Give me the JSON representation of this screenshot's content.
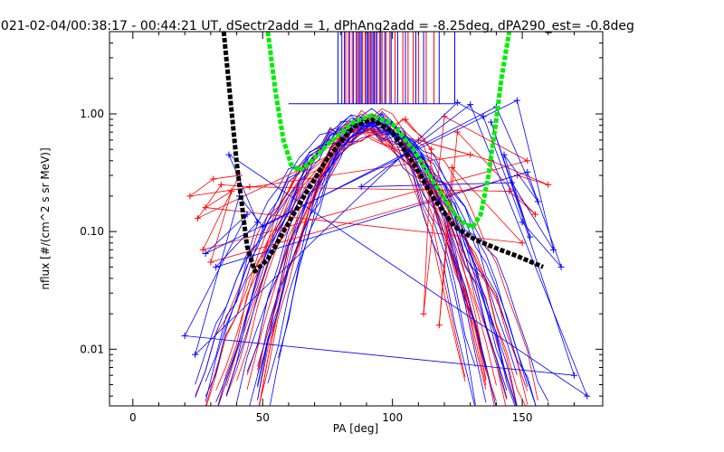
{
  "chart_data": {
    "type": "line",
    "title": "2021-02-04/00:38:17 - 00:44:21 UT, dSectr2add = 1, dPhAng2add = -8.25deg, dPA290_est=  -0.8deg",
    "xlabel": "PA [deg]",
    "ylabel": "nflux [#/(cm^2 s sr MeV)]",
    "xlim": [
      -9,
      181
    ],
    "ylim": [
      0.0033,
      5.0
    ],
    "yscale": "log",
    "x_ticks": [
      0,
      50,
      100,
      150
    ],
    "x_tick_labels": [
      "0",
      "50",
      "100",
      "150"
    ],
    "y_ticks": [
      0.01,
      0.1,
      1.0
    ],
    "y_tick_labels": [
      "0.01",
      "0.10",
      "1.00"
    ],
    "grid": false,
    "colors": {
      "red": "#ff0000",
      "blue": "#0000ff",
      "black": "#000000",
      "green": "#00ee00"
    },
    "series": [
      {
        "color": "#000000",
        "style": "thick-dashed",
        "x": [
          35,
          40,
          44,
          47,
          52,
          58,
          66,
          75,
          85,
          92,
          100,
          108,
          116,
          124,
          132,
          140,
          148,
          158
        ],
        "y": [
          5.0,
          0.38,
          0.075,
          0.046,
          0.058,
          0.1,
          0.2,
          0.42,
          0.78,
          0.9,
          0.7,
          0.38,
          0.19,
          0.11,
          0.085,
          0.072,
          0.062,
          0.05
        ]
      },
      {
        "color": "#00ee00",
        "style": "thick-dashed",
        "x": [
          52,
          55,
          58,
          61,
          64,
          68,
          75,
          85,
          92,
          100,
          108,
          116,
          124,
          128,
          131,
          134,
          137,
          140,
          142,
          145
        ],
        "y": [
          5.0,
          1.5,
          0.6,
          0.37,
          0.33,
          0.38,
          0.55,
          0.85,
          0.97,
          0.82,
          0.5,
          0.26,
          0.14,
          0.115,
          0.11,
          0.14,
          0.3,
          0.9,
          2.0,
          5.0
        ]
      }
    ],
    "sector_lines": {
      "color_red": "#ff0000",
      "color_blue": "#0000ff",
      "y_from": 1.22,
      "y_to": 5.0,
      "red_x": [
        82,
        83,
        84.5,
        86,
        87,
        88.5,
        89.5,
        91,
        92,
        93.5,
        95,
        96,
        97.5,
        99,
        101,
        104,
        106,
        108,
        110,
        113,
        116
      ],
      "blue_x": [
        79,
        80.5,
        81.5,
        83.5,
        85,
        86.5,
        87.5,
        88,
        90,
        90.5,
        91.5,
        92.5,
        93,
        94,
        95.5,
        97,
        99.5,
        102,
        105,
        109,
        112,
        118,
        124
      ]
    },
    "bundle": {
      "center": 91,
      "peak": 0.92,
      "floor": 0.0033,
      "red_curves": 18,
      "blue_curves": 18,
      "red_noise_points": {
        "x": [
          22,
          25,
          28,
          31,
          34,
          38,
          41,
          45,
          30,
          27,
          145,
          148,
          152,
          155,
          160,
          120,
          125,
          138,
          112,
          118,
          110,
          115,
          123,
          130,
          105,
          150
        ],
        "y": [
          0.2,
          0.13,
          0.16,
          0.28,
          0.25,
          0.22,
          0.3,
          0.24,
          0.055,
          0.07,
          0.22,
          0.3,
          0.4,
          0.14,
          0.25,
          0.95,
          0.7,
          0.4,
          0.02,
          0.016,
          0.6,
          0.5,
          0.35,
          0.45,
          0.9,
          0.08
        ]
      },
      "blue_noise_points": {
        "x": [
          37,
          41,
          44,
          48,
          50,
          28,
          32,
          140,
          148,
          152,
          156,
          162,
          165,
          143,
          146,
          150,
          153,
          88,
          135,
          138,
          130,
          125,
          170,
          175,
          24,
          20
        ],
        "y": [
          0.45,
          0.2,
          0.14,
          0.12,
          0.11,
          0.065,
          0.05,
          1.15,
          1.3,
          0.32,
          0.18,
          0.07,
          0.05,
          0.45,
          0.26,
          0.12,
          0.09,
          0.24,
          0.95,
          0.85,
          1.2,
          1.25,
          0.006,
          0.004,
          0.009,
          0.013
        ]
      }
    }
  }
}
